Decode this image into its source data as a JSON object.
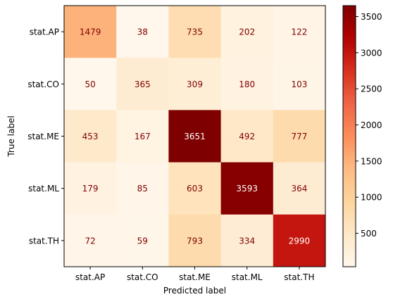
{
  "chart_data": {
    "type": "heatmap",
    "title": "",
    "xlabel": "Predicted label",
    "ylabel": "True label",
    "x_categories": [
      "stat.AP",
      "stat.CO",
      "stat.ME",
      "stat.ML",
      "stat.TH"
    ],
    "y_categories": [
      "stat.AP",
      "stat.CO",
      "stat.ME",
      "stat.ML",
      "stat.TH"
    ],
    "values": [
      [
        1479,
        38,
        735,
        202,
        122
      ],
      [
        50,
        365,
        309,
        180,
        103
      ],
      [
        453,
        167,
        3651,
        492,
        777
      ],
      [
        179,
        85,
        603,
        3593,
        364
      ],
      [
        72,
        59,
        793,
        334,
        2990
      ]
    ],
    "colormap": "OrRd",
    "colorbar": {
      "min": 38,
      "max": 3651,
      "ticks": [
        500,
        1000,
        1500,
        2000,
        2500,
        3000,
        3500
      ]
    },
    "grid": false
  }
}
